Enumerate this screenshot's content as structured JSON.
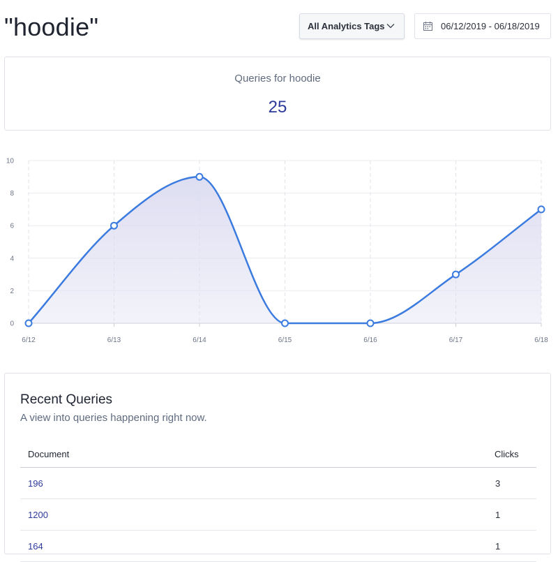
{
  "header": {
    "title": "\"hoodie\"",
    "tag_filter": "All Analytics Tags",
    "date_range": "06/12/2019 - 06/18/2019"
  },
  "stat": {
    "label": "Queries for hoodie",
    "value": "25"
  },
  "chart_data": {
    "type": "area",
    "categories": [
      "6/12",
      "6/13",
      "6/14",
      "6/15",
      "6/16",
      "6/17",
      "6/18"
    ],
    "values": [
      0,
      6,
      9,
      0,
      0,
      3,
      7
    ],
    "ylim": [
      0,
      10
    ],
    "yticks": [
      0,
      2,
      4,
      6,
      8,
      10
    ],
    "xlabel": "",
    "ylabel": "",
    "grid": true,
    "line_color": "#3b7be0",
    "fill_color": "#dcdcf1"
  },
  "recent_queries": {
    "title": "Recent Queries",
    "subtitle": "A view into queries happening right now.",
    "columns": {
      "document": "Document",
      "clicks": "Clicks"
    },
    "rows": [
      {
        "document": "196",
        "clicks": "3"
      },
      {
        "document": "1200",
        "clicks": "1"
      },
      {
        "document": "164",
        "clicks": "1"
      }
    ]
  },
  "colors": {
    "accent": "#2d3a9c",
    "muted_text": "#5f6b7e",
    "border": "#dfe2e8"
  }
}
